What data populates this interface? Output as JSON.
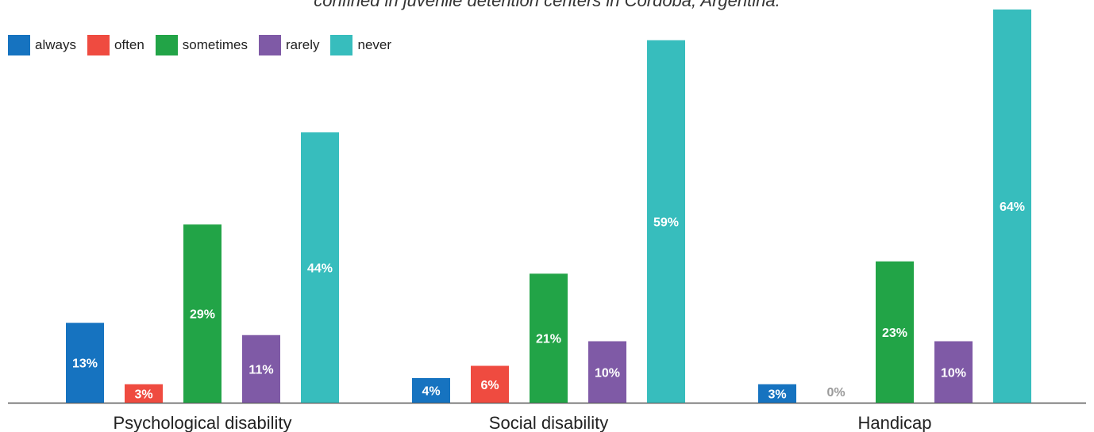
{
  "chart_data": {
    "type": "bar",
    "title": "confined in juvenile detention centers in Córdoba, Argentina.",
    "categories": [
      "Psychological disability",
      "Social disability",
      "Handicap"
    ],
    "series": [
      {
        "name": "always",
        "color": "#1673c0",
        "values": [
          13,
          4,
          3
        ],
        "labels": [
          "13%",
          "4%",
          "3%"
        ]
      },
      {
        "name": "often",
        "color": "#ef4b40",
        "values": [
          3,
          6,
          0
        ],
        "labels": [
          "3%",
          "6%",
          "0%"
        ]
      },
      {
        "name": "sometimes",
        "color": "#22a447",
        "values": [
          29,
          21,
          23
        ],
        "labels": [
          "29%",
          "21%",
          "23%"
        ]
      },
      {
        "name": "rarely",
        "color": "#7f5aa6",
        "values": [
          11,
          10,
          10
        ],
        "labels": [
          "11%",
          "10%",
          "10%"
        ]
      },
      {
        "name": "never",
        "color": "#37bdbd",
        "values": [
          44,
          59,
          64
        ],
        "labels": [
          "44%",
          "59%",
          "64%"
        ]
      }
    ],
    "ylim": [
      0,
      64
    ],
    "legend_position": "top-left",
    "grid": false
  }
}
